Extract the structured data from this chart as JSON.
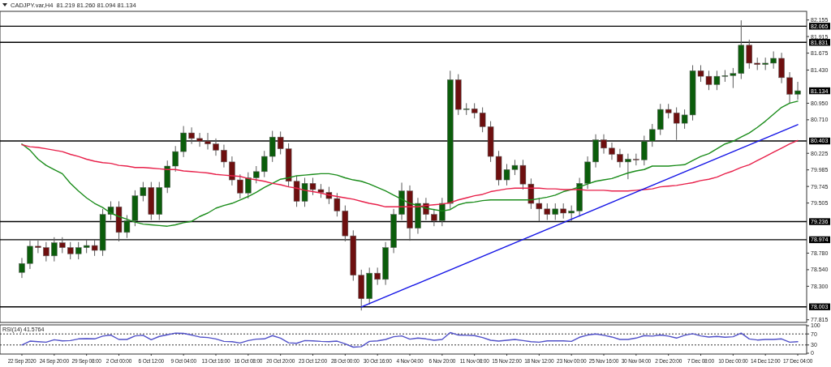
{
  "chart_data": [
    {
      "type": "candlestick",
      "title": "CADJPY.var,H4  81.219 81.260 81.094 81.134",
      "tick_labels": "y",
      "categories": [
        null,
        null,
        null,
        null,
        null,
        null,
        null,
        null,
        null,
        null,
        null,
        null,
        null,
        null,
        null,
        null,
        null,
        null,
        null,
        null,
        null,
        null,
        null,
        null,
        null,
        null,
        null,
        null,
        null,
        null,
        null,
        null,
        null,
        null,
        null,
        null,
        null,
        null,
        null,
        null,
        null,
        null,
        null,
        null,
        null,
        null,
        null,
        null,
        null,
        null,
        null,
        null,
        null,
        null,
        null,
        null,
        null,
        null,
        null,
        null,
        null,
        null,
        null,
        null,
        null,
        null,
        null,
        null,
        null,
        null,
        null,
        null,
        null,
        null,
        null,
        null,
        null,
        null,
        null,
        null,
        null,
        null,
        null,
        null,
        null,
        null,
        null,
        null,
        null,
        null,
        null,
        null,
        null,
        null,
        null,
        null,
        null
      ],
      "ohlc": [
        [
          78.5,
          78.71,
          78.42,
          78.63
        ],
        [
          78.63,
          78.96,
          78.55,
          78.88
        ],
        [
          78.88,
          78.96,
          78.78,
          78.86
        ],
        [
          78.86,
          78.94,
          78.66,
          78.74
        ],
        [
          78.74,
          79.01,
          78.66,
          78.93
        ],
        [
          78.93,
          79.01,
          78.78,
          78.86
        ],
        [
          78.86,
          78.94,
          78.69,
          78.77
        ],
        [
          78.77,
          78.94,
          78.69,
          78.86
        ],
        [
          78.86,
          78.97,
          78.78,
          78.89
        ],
        [
          78.89,
          78.97,
          78.74,
          78.82
        ],
        [
          78.82,
          79.42,
          78.74,
          79.34
        ],
        [
          79.34,
          79.53,
          79.26,
          79.45
        ],
        [
          79.45,
          79.53,
          78.95,
          79.08
        ],
        [
          79.08,
          79.33,
          79.0,
          79.25
        ],
        [
          79.25,
          79.69,
          79.17,
          79.61
        ],
        [
          79.61,
          79.81,
          79.53,
          79.73
        ],
        [
          79.73,
          79.81,
          79.26,
          79.34
        ],
        [
          79.34,
          79.81,
          79.26,
          79.73
        ],
        [
          79.73,
          80.12,
          79.65,
          80.04
        ],
        [
          80.04,
          80.33,
          79.96,
          80.25
        ],
        [
          80.25,
          80.62,
          80.17,
          80.52
        ],
        [
          80.52,
          80.6,
          80.36,
          80.44
        ],
        [
          80.44,
          80.52,
          80.32,
          80.4
        ],
        [
          80.4,
          80.52,
          80.28,
          80.36
        ],
        [
          80.36,
          80.44,
          80.19,
          80.27
        ],
        [
          80.27,
          80.35,
          80.02,
          80.1
        ],
        [
          80.1,
          80.18,
          79.76,
          79.84
        ],
        [
          79.84,
          79.92,
          79.57,
          79.65
        ],
        [
          79.65,
          79.95,
          79.57,
          79.87
        ],
        [
          79.87,
          80.04,
          79.79,
          79.96
        ],
        [
          79.96,
          80.26,
          79.88,
          80.18
        ],
        [
          80.18,
          80.55,
          80.1,
          80.46
        ],
        [
          80.46,
          80.54,
          80.21,
          80.29
        ],
        [
          80.29,
          80.37,
          79.74,
          79.82
        ],
        [
          79.82,
          79.9,
          79.45,
          79.53
        ],
        [
          79.53,
          79.87,
          79.45,
          79.79
        ],
        [
          79.79,
          79.87,
          79.62,
          79.7
        ],
        [
          79.7,
          79.78,
          79.58,
          79.66
        ],
        [
          79.66,
          79.74,
          79.49,
          79.57
        ],
        [
          79.57,
          79.65,
          79.31,
          79.39
        ],
        [
          79.39,
          79.47,
          78.95,
          79.03
        ],
        [
          79.03,
          79.11,
          78.38,
          78.46
        ],
        [
          78.46,
          78.54,
          77.95,
          78.12
        ],
        [
          78.12,
          78.57,
          78.04,
          78.49
        ],
        [
          78.49,
          78.57,
          78.32,
          78.4
        ],
        [
          78.4,
          78.94,
          78.32,
          78.86
        ],
        [
          78.86,
          79.42,
          78.78,
          79.34
        ],
        [
          79.34,
          79.8,
          79.26,
          79.68
        ],
        [
          79.68,
          79.76,
          78.96,
          79.14
        ],
        [
          79.14,
          79.58,
          79.06,
          79.5
        ],
        [
          79.5,
          79.58,
          79.26,
          79.34
        ],
        [
          79.34,
          79.42,
          79.17,
          79.25
        ],
        [
          79.25,
          79.58,
          79.17,
          79.5
        ],
        [
          79.5,
          81.42,
          79.42,
          81.29
        ],
        [
          81.29,
          81.37,
          80.78,
          80.86
        ],
        [
          80.86,
          80.95,
          80.78,
          80.87
        ],
        [
          80.87,
          80.95,
          80.73,
          80.81
        ],
        [
          80.81,
          80.89,
          80.53,
          80.61
        ],
        [
          80.61,
          80.69,
          80.1,
          80.18
        ],
        [
          80.18,
          80.26,
          79.76,
          79.84
        ],
        [
          79.84,
          80.07,
          79.76,
          79.99
        ],
        [
          79.99,
          80.13,
          79.91,
          80.05
        ],
        [
          80.05,
          80.13,
          79.7,
          79.78
        ],
        [
          79.78,
          79.86,
          79.42,
          79.5
        ],
        [
          79.5,
          79.58,
          79.24,
          79.42
        ],
        [
          79.42,
          79.5,
          79.26,
          79.34
        ],
        [
          79.34,
          79.5,
          79.26,
          79.42
        ],
        [
          79.42,
          79.5,
          79.28,
          79.36
        ],
        [
          79.36,
          79.47,
          79.24,
          79.39
        ],
        [
          79.39,
          79.87,
          79.31,
          79.79
        ],
        [
          79.79,
          80.18,
          79.71,
          80.1
        ],
        [
          80.1,
          80.5,
          80.02,
          80.42
        ],
        [
          80.42,
          80.5,
          80.22,
          80.3
        ],
        [
          80.3,
          80.38,
          80.13,
          80.21
        ],
        [
          80.21,
          80.29,
          80.02,
          80.1
        ],
        [
          80.1,
          80.22,
          79.85,
          80.14
        ],
        [
          80.14,
          80.22,
          80.05,
          80.13
        ],
        [
          80.13,
          80.48,
          80.05,
          80.4
        ],
        [
          80.4,
          80.65,
          80.32,
          80.57
        ],
        [
          80.57,
          80.94,
          80.49,
          80.86
        ],
        [
          80.86,
          80.94,
          80.73,
          80.81
        ],
        [
          80.81,
          80.89,
          80.42,
          80.66
        ],
        [
          80.66,
          80.86,
          80.58,
          80.78
        ],
        [
          80.78,
          81.5,
          80.7,
          81.42
        ],
        [
          81.42,
          81.5,
          81.26,
          81.34
        ],
        [
          81.34,
          81.42,
          81.14,
          81.22
        ],
        [
          81.22,
          81.42,
          81.14,
          81.34
        ],
        [
          81.34,
          81.43,
          81.26,
          81.35
        ],
        [
          81.35,
          81.46,
          81.17,
          81.38
        ],
        [
          81.38,
          82.15,
          81.3,
          81.79
        ],
        [
          81.79,
          81.87,
          81.45,
          81.53
        ],
        [
          81.53,
          81.61,
          81.43,
          81.51
        ],
        [
          81.51,
          81.61,
          81.43,
          81.53
        ],
        [
          81.53,
          81.7,
          81.45,
          81.6
        ],
        [
          81.6,
          81.68,
          81.24,
          81.32
        ],
        [
          81.32,
          81.4,
          80.95,
          81.08
        ],
        [
          81.08,
          81.26,
          81.0,
          81.13
        ]
      ],
      "series": [
        {
          "type": "line",
          "color": "#1a8c1a",
          "values": [
            80.36,
            80.27,
            80.14,
            80.05,
            79.99,
            79.93,
            79.79,
            79.68,
            79.58,
            79.5,
            79.44,
            79.36,
            79.31,
            79.27,
            79.23,
            79.2,
            79.19,
            79.18,
            79.17,
            79.19,
            79.22,
            79.24,
            79.31,
            79.36,
            79.43,
            79.47,
            79.5,
            79.55,
            79.6,
            79.66,
            79.73,
            79.79,
            79.85,
            79.87,
            79.9,
            79.91,
            79.92,
            79.93,
            79.93,
            79.91,
            79.87,
            79.84,
            79.82,
            79.78,
            79.73,
            79.68,
            79.62,
            79.56,
            79.5,
            79.47,
            79.43,
            79.41,
            79.39,
            79.41,
            79.48,
            79.51,
            79.52,
            79.54,
            79.55,
            79.55,
            79.55,
            79.55,
            79.55,
            79.55,
            79.57,
            79.59,
            79.62,
            79.67,
            79.7,
            79.74,
            79.78,
            79.82,
            79.84,
            79.86,
            79.9,
            79.94,
            79.97,
            79.99,
            80.04,
            80.04,
            80.04,
            80.05,
            80.06,
            80.12,
            80.18,
            80.22,
            80.29,
            80.36,
            80.4,
            80.46,
            80.52,
            80.6,
            80.69,
            80.79,
            80.89,
            80.95,
            80.98
          ]
        },
        {
          "type": "line",
          "color": "#e8204a",
          "values": [
            80.35,
            80.32,
            80.31,
            80.29,
            80.27,
            80.25,
            80.21,
            80.18,
            80.14,
            80.11,
            80.09,
            80.08,
            80.05,
            80.04,
            80.02,
            80.02,
            80.01,
            80.0,
            79.99,
            79.99,
            79.97,
            79.96,
            79.95,
            79.94,
            79.92,
            79.91,
            79.9,
            79.89,
            79.86,
            79.84,
            79.82,
            79.79,
            79.77,
            79.74,
            79.72,
            79.69,
            79.67,
            79.65,
            79.62,
            79.6,
            79.58,
            79.56,
            79.53,
            79.5,
            79.48,
            79.45,
            79.45,
            79.45,
            79.45,
            79.45,
            79.47,
            79.48,
            79.49,
            79.51,
            79.55,
            79.58,
            79.61,
            79.63,
            79.67,
            79.69,
            79.71,
            79.72,
            79.72,
            79.72,
            79.72,
            79.71,
            79.71,
            79.7,
            79.7,
            79.7,
            79.69,
            79.69,
            79.69,
            79.68,
            79.68,
            79.68,
            79.69,
            79.7,
            79.71,
            79.74,
            79.75,
            79.76,
            79.78,
            79.8,
            79.83,
            79.85,
            79.88,
            79.93,
            79.97,
            80.02,
            80.06,
            80.12,
            80.18,
            80.24,
            80.3,
            80.36,
            80.41
          ]
        },
        {
          "type": "line",
          "color": "#1414e6",
          "values": [
            null,
            null,
            null,
            null,
            null,
            null,
            null,
            null,
            null,
            null,
            null,
            null,
            null,
            null,
            null,
            null,
            null,
            null,
            null,
            null,
            null,
            null,
            null,
            null,
            null,
            null,
            null,
            null,
            null,
            null,
            null,
            null,
            null,
            null,
            null,
            null,
            null,
            null,
            null,
            null,
            null,
            null,
            78.0,
            null,
            null,
            null,
            null,
            null,
            null,
            null,
            null,
            null,
            null,
            null,
            null,
            null,
            null,
            null,
            null,
            null,
            null,
            null,
            null,
            null,
            null,
            null,
            null,
            null,
            null,
            null,
            null,
            null,
            null,
            null,
            null,
            null,
            null,
            null,
            null,
            null,
            null,
            null,
            null,
            null,
            null,
            null,
            null,
            null,
            null,
            null,
            null,
            null,
            null,
            null,
            null,
            null,
            80.64
          ]
        }
      ],
      "ylim": [
        77.8,
        82.28
      ],
      "yticks": [
        82.155,
        81.915,
        81.675,
        {
          "value": 81.43,
          "label": "81.430"
        },
        {
          "value": 80.95,
          "label": "80.950"
        },
        {
          "value": 80.71,
          "label": "80.710"
        },
        80.225,
        79.985,
        79.745,
        79.505,
        {
          "value": 78.78,
          "label": "78.780"
        },
        {
          "value": 78.54,
          "label": "78.540"
        },
        {
          "value": 78.3,
          "label": "78.300"
        },
        77.815
      ],
      "ref_lines": [
        {
          "axis": "y",
          "value": 82.065,
          "label": "82.065",
          "color": "#000000"
        },
        {
          "axis": "y",
          "value": 81.831,
          "label": "81.831",
          "color": "#000000"
        },
        {
          "axis": "y",
          "value": 80.403,
          "label": "80.403",
          "color": "#000000"
        },
        {
          "axis": "y",
          "value": 79.236,
          "label": "79.236",
          "color": "#000000"
        },
        {
          "axis": "y",
          "value": 78.974,
          "label": "78.974",
          "color": "#000000"
        },
        {
          "axis": "y",
          "value": 78.003,
          "label": "78.003",
          "color": "#000000"
        }
      ],
      "annotations": [
        "81.134"
      ]
    },
    {
      "type": "line",
      "title": "RSI(14) 41.5764",
      "categories": [
        "22 Sep 2020",
        null,
        null,
        null,
        "24 Sep 20:00",
        null,
        null,
        null,
        "29 Sep 08:00",
        null,
        null,
        null,
        "2 Oct 00:00",
        null,
        null,
        null,
        "6 Oct 12:00",
        null,
        null,
        null,
        "9 Oct 04:00",
        null,
        null,
        null,
        "13 Oct 16:00",
        null,
        null,
        null,
        "16 Oct 08:00",
        null,
        null,
        null,
        "20 Oct 20:00",
        null,
        null,
        null,
        "23 Oct 12:00",
        null,
        null,
        null,
        "28 Oct 00:00",
        null,
        null,
        null,
        "30 Oct 16:00",
        null,
        null,
        null,
        "4 Nov 04:00",
        null,
        null,
        null,
        "6 Nov 20:00",
        null,
        null,
        null,
        "11 Nov 08:00",
        null,
        null,
        null,
        "15 Nov 22:00",
        null,
        null,
        null,
        "18 Nov 12:00",
        null,
        null,
        null,
        "23 Nov 00:00",
        null,
        null,
        null,
        "25 Nov 16:00",
        null,
        null,
        null,
        "30 Nov 04:00",
        null,
        null,
        null,
        "2 Dec 20:00",
        null,
        null,
        null,
        "7 Dec 08:00",
        null,
        null,
        null,
        "10 Dec 00:00",
        null,
        null,
        null,
        "14 Dec 12:00",
        null,
        null,
        null,
        "17 Dec 04:00"
      ],
      "series": [
        {
          "color": "#5050c8",
          "values": [
            30,
            44,
            42,
            40,
            49,
            45,
            46,
            52,
            53,
            52,
            62,
            66,
            50,
            50,
            63,
            65,
            49,
            61,
            67,
            73,
            72,
            66,
            59,
            57,
            52,
            43,
            42,
            37,
            46,
            51,
            52,
            64,
            55,
            38,
            36,
            46,
            45,
            43,
            42,
            44,
            34,
            22,
            24,
            43,
            45,
            50,
            60,
            63,
            51,
            55,
            52,
            47,
            50,
            75,
            66,
            65,
            64,
            57,
            47,
            44,
            47,
            50,
            46,
            42,
            40,
            45,
            45,
            45,
            43,
            58,
            66,
            70,
            65,
            59,
            50,
            50,
            55,
            64,
            62,
            66,
            62,
            55,
            65,
            71,
            63,
            59,
            61,
            58,
            60,
            73,
            52,
            48,
            50,
            50,
            52,
            40,
            42
          ]
        }
      ],
      "ylim": [
        0,
        100
      ],
      "yticks": [
        0,
        30,
        70,
        100
      ],
      "ref_lines": [
        {
          "axis": "y",
          "value": 70,
          "line_style": "dotted",
          "color": "#333333"
        },
        {
          "axis": "y",
          "value": 30,
          "line_style": "dotted",
          "color": "#333333"
        }
      ]
    }
  ]
}
